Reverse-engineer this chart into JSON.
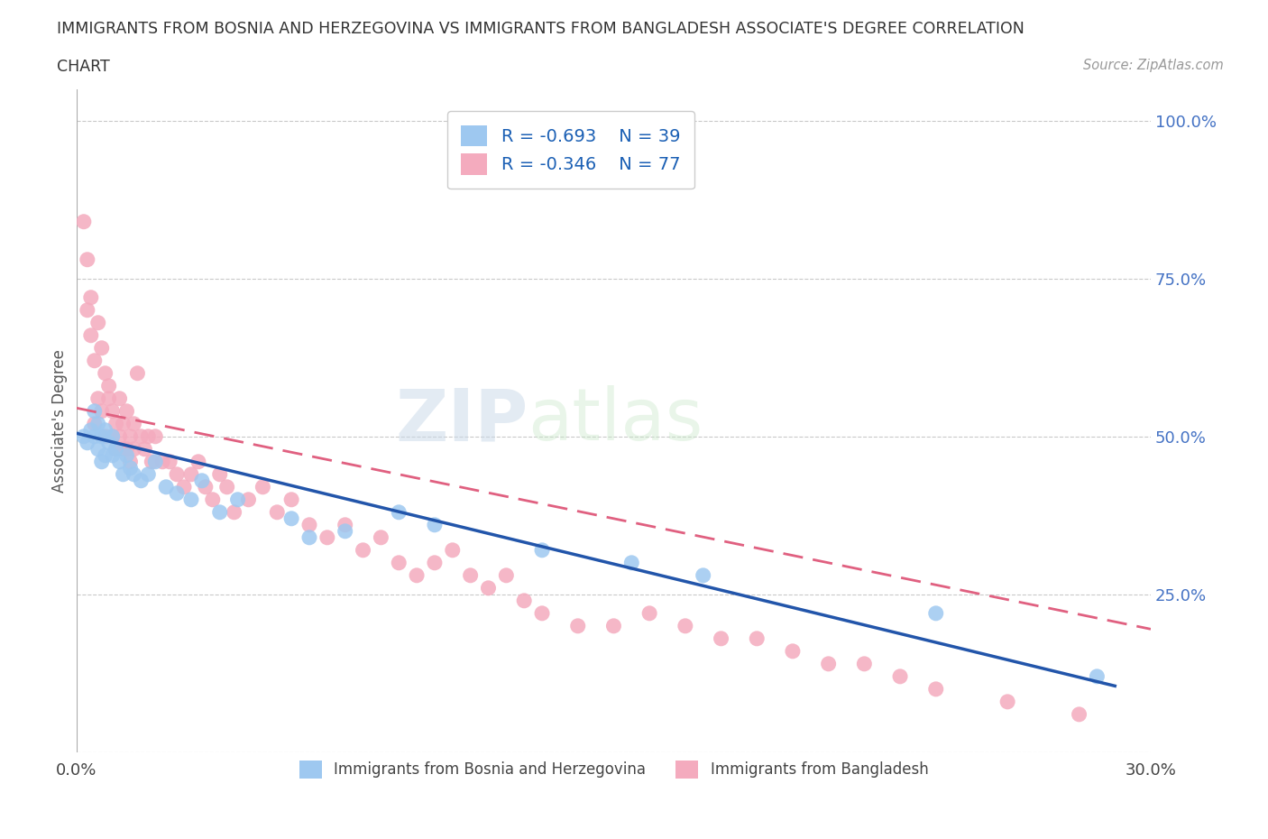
{
  "title_line1": "IMMIGRANTS FROM BOSNIA AND HERZEGOVINA VS IMMIGRANTS FROM BANGLADESH ASSOCIATE'S DEGREE CORRELATION",
  "title_line2": "CHART",
  "source": "Source: ZipAtlas.com",
  "ylabel": "Associate's Degree",
  "xmin": 0.0,
  "xmax": 0.3,
  "ymin": 0.0,
  "ymax": 1.05,
  "blue_color": "#9EC8F0",
  "pink_color": "#F4ABBE",
  "blue_line_color": "#2255AA",
  "pink_line_color": "#E06080",
  "r_blue": -0.693,
  "n_blue": 39,
  "r_pink": -0.346,
  "n_pink": 77,
  "legend_label_blue": "Immigrants from Bosnia and Herzegovina",
  "legend_label_pink": "Immigrants from Bangladesh",
  "watermark_zip": "ZIP",
  "watermark_atlas": "atlas",
  "blue_scatter_x": [
    0.002,
    0.003,
    0.004,
    0.005,
    0.005,
    0.006,
    0.006,
    0.007,
    0.007,
    0.008,
    0.008,
    0.009,
    0.01,
    0.01,
    0.011,
    0.012,
    0.013,
    0.014,
    0.015,
    0.016,
    0.018,
    0.02,
    0.022,
    0.025,
    0.028,
    0.032,
    0.035,
    0.04,
    0.045,
    0.06,
    0.065,
    0.075,
    0.09,
    0.1,
    0.13,
    0.155,
    0.175,
    0.24,
    0.285
  ],
  "blue_scatter_y": [
    0.5,
    0.49,
    0.51,
    0.5,
    0.54,
    0.48,
    0.52,
    0.5,
    0.46,
    0.51,
    0.47,
    0.49,
    0.5,
    0.47,
    0.48,
    0.46,
    0.44,
    0.47,
    0.45,
    0.44,
    0.43,
    0.44,
    0.46,
    0.42,
    0.41,
    0.4,
    0.43,
    0.38,
    0.4,
    0.37,
    0.34,
    0.35,
    0.38,
    0.36,
    0.32,
    0.3,
    0.28,
    0.22,
    0.12
  ],
  "pink_scatter_x": [
    0.002,
    0.003,
    0.003,
    0.004,
    0.004,
    0.005,
    0.005,
    0.006,
    0.006,
    0.007,
    0.007,
    0.008,
    0.008,
    0.009,
    0.009,
    0.01,
    0.01,
    0.011,
    0.011,
    0.012,
    0.012,
    0.013,
    0.013,
    0.014,
    0.014,
    0.015,
    0.015,
    0.016,
    0.016,
    0.017,
    0.018,
    0.019,
    0.02,
    0.021,
    0.022,
    0.024,
    0.026,
    0.028,
    0.03,
    0.032,
    0.034,
    0.036,
    0.038,
    0.04,
    0.042,
    0.044,
    0.048,
    0.052,
    0.056,
    0.06,
    0.065,
    0.07,
    0.075,
    0.08,
    0.085,
    0.09,
    0.095,
    0.1,
    0.105,
    0.11,
    0.115,
    0.12,
    0.125,
    0.13,
    0.14,
    0.15,
    0.16,
    0.17,
    0.18,
    0.19,
    0.2,
    0.21,
    0.22,
    0.23,
    0.24,
    0.26,
    0.28
  ],
  "pink_scatter_y": [
    0.84,
    0.7,
    0.78,
    0.66,
    0.72,
    0.62,
    0.52,
    0.68,
    0.56,
    0.64,
    0.54,
    0.6,
    0.5,
    0.58,
    0.56,
    0.54,
    0.5,
    0.52,
    0.48,
    0.56,
    0.5,
    0.52,
    0.48,
    0.54,
    0.48,
    0.5,
    0.46,
    0.52,
    0.48,
    0.6,
    0.5,
    0.48,
    0.5,
    0.46,
    0.5,
    0.46,
    0.46,
    0.44,
    0.42,
    0.44,
    0.46,
    0.42,
    0.4,
    0.44,
    0.42,
    0.38,
    0.4,
    0.42,
    0.38,
    0.4,
    0.36,
    0.34,
    0.36,
    0.32,
    0.34,
    0.3,
    0.28,
    0.3,
    0.32,
    0.28,
    0.26,
    0.28,
    0.24,
    0.22,
    0.2,
    0.2,
    0.22,
    0.2,
    0.18,
    0.18,
    0.16,
    0.14,
    0.14,
    0.12,
    0.1,
    0.08,
    0.06
  ],
  "blue_line_x0": 0.0,
  "blue_line_y0": 0.505,
  "blue_line_x1": 0.29,
  "blue_line_y1": 0.105,
  "pink_line_x0": 0.0,
  "pink_line_y0": 0.545,
  "pink_line_x1": 0.3,
  "pink_line_y1": 0.195
}
